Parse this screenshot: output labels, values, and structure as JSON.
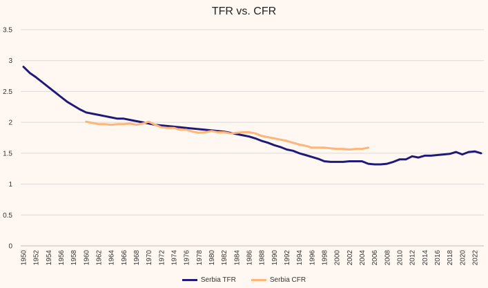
{
  "chart_data": {
    "type": "line",
    "title": "TFR vs. CFR",
    "xlabel": "",
    "ylabel": "",
    "xlim": [
      1950,
      2023
    ],
    "ylim": [
      0,
      3.5
    ],
    "yticks": [
      "0",
      "0.5",
      "1",
      "1.5",
      "2",
      "2.5",
      "3",
      "3.5"
    ],
    "xtick_step": 2,
    "grid": true,
    "legend_position": "bottom",
    "series": [
      {
        "name": "Serbia TFR",
        "color": "#1f1a7a",
        "x_start": 1950,
        "values": [
          2.9,
          2.8,
          2.73,
          2.65,
          2.57,
          2.49,
          2.41,
          2.33,
          2.27,
          2.21,
          2.16,
          2.14,
          2.12,
          2.1,
          2.08,
          2.06,
          2.06,
          2.04,
          2.02,
          2.0,
          1.98,
          1.96,
          1.95,
          1.94,
          1.93,
          1.92,
          1.91,
          1.9,
          1.89,
          1.88,
          1.87,
          1.86,
          1.85,
          1.83,
          1.81,
          1.79,
          1.77,
          1.74,
          1.7,
          1.67,
          1.63,
          1.6,
          1.56,
          1.54,
          1.5,
          1.47,
          1.44,
          1.41,
          1.37,
          1.36,
          1.36,
          1.36,
          1.37,
          1.37,
          1.37,
          1.33,
          1.32,
          1.32,
          1.33,
          1.36,
          1.4,
          1.4,
          1.45,
          1.43,
          1.46,
          1.46,
          1.47,
          1.48,
          1.49,
          1.52,
          1.48,
          1.52,
          1.53,
          1.5
        ]
      },
      {
        "name": "Serbia CFR",
        "color": "#ffb577",
        "x_start": 1960,
        "values": [
          2.01,
          1.99,
          1.97,
          1.97,
          1.96,
          1.97,
          1.97,
          1.98,
          1.96,
          1.98,
          2.01,
          1.96,
          1.92,
          1.91,
          1.91,
          1.88,
          1.88,
          1.85,
          1.83,
          1.84,
          1.86,
          1.84,
          1.84,
          1.82,
          1.83,
          1.84,
          1.84,
          1.82,
          1.78,
          1.76,
          1.74,
          1.72,
          1.7,
          1.67,
          1.64,
          1.62,
          1.59,
          1.59,
          1.59,
          1.58,
          1.57,
          1.57,
          1.56,
          1.57,
          1.57,
          1.59
        ]
      }
    ]
  }
}
